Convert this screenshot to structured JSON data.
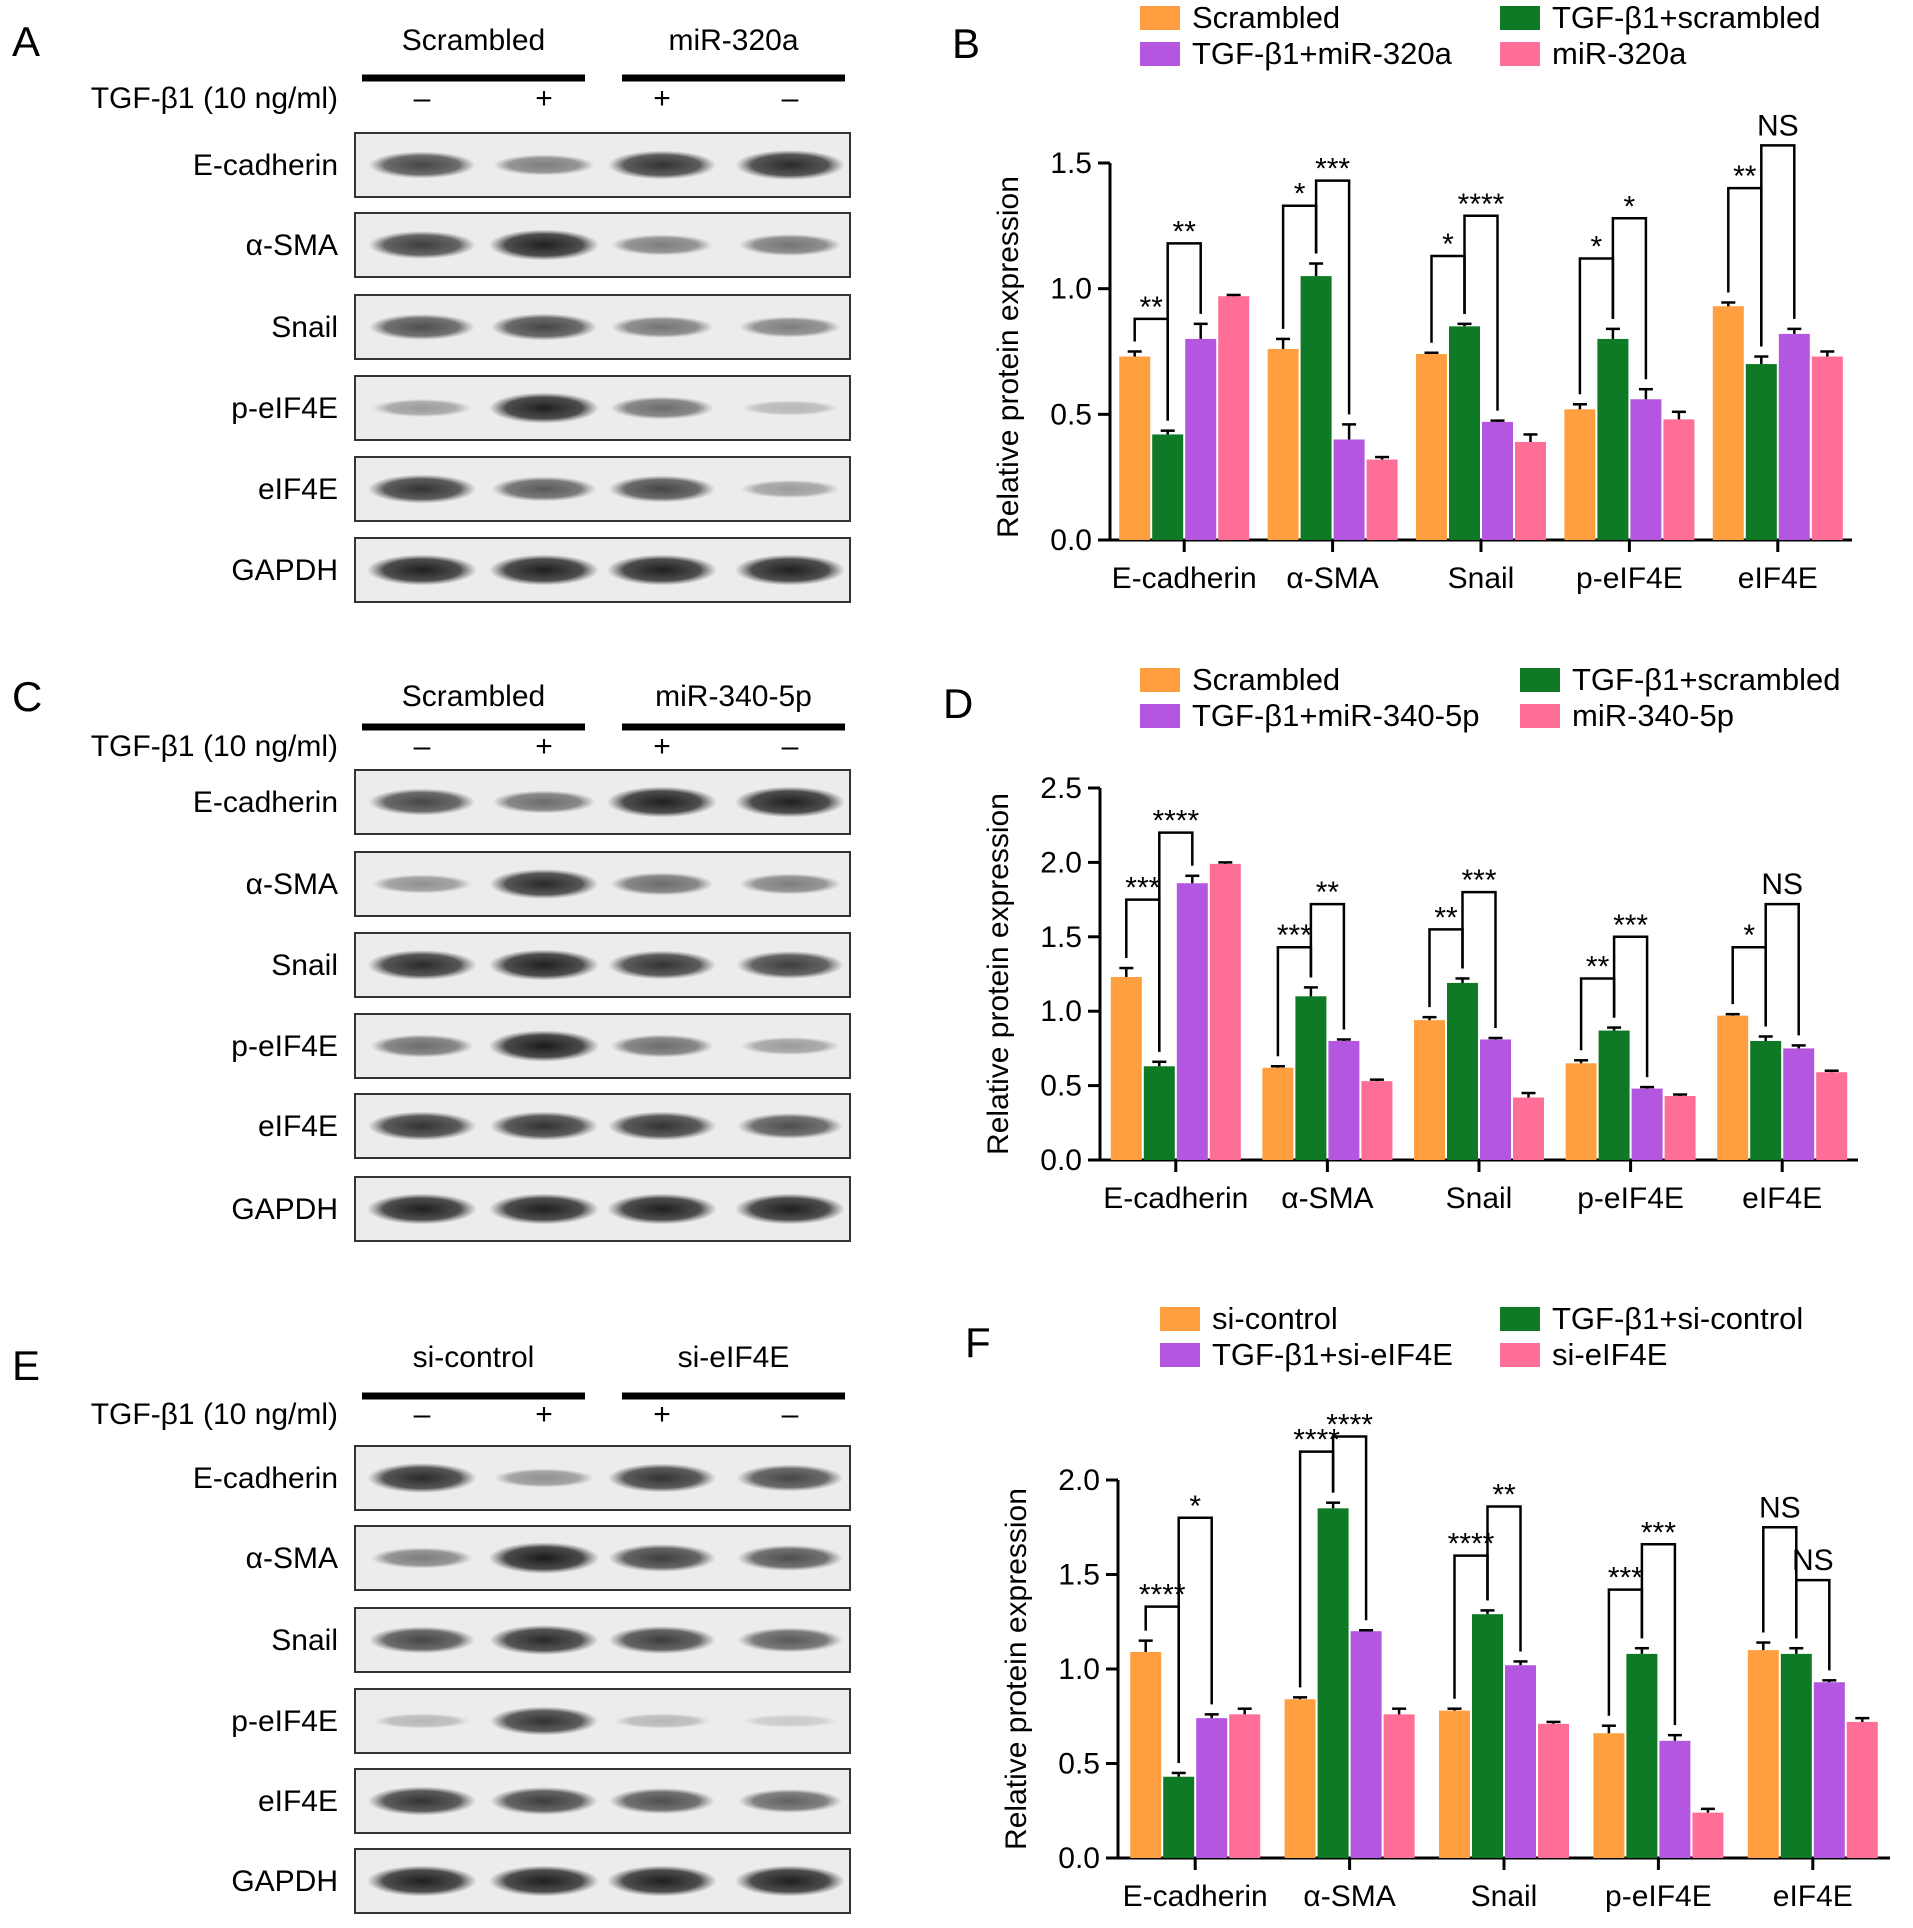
{
  "colors": {
    "orange": "#FF9F3F",
    "green": "#0E7A26",
    "purple": "#B457E0",
    "pink": "#FF6E96",
    "blot_band": "#161616",
    "blot_background": "#ececec"
  },
  "blot_panels": [
    {
      "letter": "A",
      "groups": [
        "Scrambled",
        "miR-320a"
      ],
      "treatment_label": "TGF-β1 (10 ng/ml)",
      "signs": [
        "–",
        "+",
        "+",
        "–"
      ],
      "rows": [
        "E-cadherin",
        "α-SMA",
        "Snail",
        "p-eIF4E",
        "eIF4E",
        "GAPDH"
      ],
      "band_intensity": [
        [
          0.75,
          0.45,
          0.85,
          0.9
        ],
        [
          0.8,
          0.95,
          0.45,
          0.5
        ],
        [
          0.7,
          0.75,
          0.5,
          0.45
        ],
        [
          0.3,
          0.95,
          0.55,
          0.15
        ],
        [
          0.85,
          0.65,
          0.75,
          0.3
        ],
        [
          0.95,
          0.95,
          0.95,
          0.95
        ]
      ]
    },
    {
      "letter": "C",
      "groups": [
        "Scrambled",
        "miR-340-5p"
      ],
      "treatment_label": "TGF-β1 (10 ng/ml)",
      "signs": [
        "–",
        "+",
        "+",
        "–"
      ],
      "rows": [
        "E-cadherin",
        "α-SMA",
        "Snail",
        "p-eIF4E",
        "eIF4E",
        "GAPDH"
      ],
      "band_intensity": [
        [
          0.75,
          0.55,
          0.95,
          0.95
        ],
        [
          0.35,
          0.9,
          0.55,
          0.45
        ],
        [
          0.9,
          0.95,
          0.85,
          0.8
        ],
        [
          0.55,
          0.98,
          0.55,
          0.3
        ],
        [
          0.85,
          0.85,
          0.85,
          0.7
        ],
        [
          0.95,
          0.95,
          0.95,
          0.95
        ]
      ]
    },
    {
      "letter": "E",
      "groups": [
        "si-control",
        "si-eIF4E"
      ],
      "treatment_label": "TGF-β1 (10 ng/ml)",
      "signs": [
        "–",
        "+",
        "+",
        "–"
      ],
      "rows": [
        "E-cadherin",
        "α-SMA",
        "Snail",
        "p-eIF4E",
        "eIF4E",
        "GAPDH"
      ],
      "band_intensity": [
        [
          0.9,
          0.35,
          0.85,
          0.75
        ],
        [
          0.45,
          0.98,
          0.8,
          0.7
        ],
        [
          0.75,
          0.9,
          0.8,
          0.65
        ],
        [
          0.15,
          0.85,
          0.15,
          0.05
        ],
        [
          0.85,
          0.8,
          0.7,
          0.6
        ],
        [
          0.95,
          0.95,
          0.95,
          0.95
        ]
      ]
    }
  ],
  "chart_data": [
    {
      "type": "bar",
      "letter": "B",
      "ylabel": "Relative protein expression",
      "ylim": [
        0,
        1.5
      ],
      "yticks": [
        "0.0",
        "0.5",
        "1.0",
        "1.5"
      ],
      "categories": [
        "E-cadherin",
        "α-SMA",
        "Snail",
        "p-eIF4E",
        "eIF4E"
      ],
      "legend": "top",
      "series": [
        {
          "name": "Scrambled",
          "color": "#FF9F3F",
          "values": [
            0.73,
            0.76,
            0.74,
            0.52,
            0.93
          ],
          "errors": [
            0.02,
            0.04,
            0.005,
            0.02,
            0.015
          ]
        },
        {
          "name": "TGF-β1+scrambled",
          "color": "#0E7A26",
          "values": [
            0.42,
            1.05,
            0.85,
            0.8,
            0.7
          ],
          "errors": [
            0.015,
            0.05,
            0.01,
            0.04,
            0.03
          ]
        },
        {
          "name": "TGF-β1+miR-320a",
          "color": "#B457E0",
          "values": [
            0.8,
            0.4,
            0.47,
            0.56,
            0.82
          ],
          "errors": [
            0.06,
            0.06,
            0.005,
            0.04,
            0.02
          ]
        },
        {
          "name": "miR-320a",
          "color": "#FF6E96",
          "values": [
            0.97,
            0.32,
            0.39,
            0.48,
            0.73
          ],
          "errors": [
            0.005,
            0.01,
            0.03,
            0.03,
            0.02
          ]
        }
      ],
      "significance": [
        {
          "category": 0,
          "from": 0,
          "to": 1,
          "label": "**",
          "level": 0.88
        },
        {
          "category": 0,
          "from": 1,
          "to": 2,
          "label": "**",
          "level": 1.18
        },
        {
          "category": 1,
          "from": 0,
          "to": 1,
          "label": "*",
          "level": 1.33
        },
        {
          "category": 1,
          "from": 1,
          "to": 2,
          "label": "***",
          "level": 1.43
        },
        {
          "category": 2,
          "from": 0,
          "to": 1,
          "label": "*",
          "level": 1.13
        },
        {
          "category": 2,
          "from": 1,
          "to": 2,
          "label": "****",
          "level": 1.29
        },
        {
          "category": 3,
          "from": 0,
          "to": 1,
          "label": "*",
          "level": 1.12
        },
        {
          "category": 3,
          "from": 1,
          "to": 2,
          "label": "*",
          "level": 1.28
        },
        {
          "category": 4,
          "from": 0,
          "to": 1,
          "label": "**",
          "level": 1.4
        },
        {
          "category": 4,
          "from": 1,
          "to": 2,
          "label": "NS",
          "level": 1.57
        }
      ]
    },
    {
      "type": "bar",
      "letter": "D",
      "ylabel": "Relative protein expression",
      "ylim": [
        0,
        2.5
      ],
      "yticks": [
        "0.0",
        "0.5",
        "1.0",
        "1.5",
        "2.0",
        "2.5"
      ],
      "categories": [
        "E-cadherin",
        "α-SMA",
        "Snail",
        "p-eIF4E",
        "eIF4E"
      ],
      "legend": "top",
      "series": [
        {
          "name": "Scrambled",
          "color": "#FF9F3F",
          "values": [
            1.23,
            0.62,
            0.94,
            0.65,
            0.97
          ],
          "errors": [
            0.06,
            0.01,
            0.02,
            0.02,
            0.01
          ]
        },
        {
          "name": "TGF-β1+scrambled",
          "color": "#0E7A26",
          "values": [
            0.63,
            1.1,
            1.19,
            0.87,
            0.8
          ],
          "errors": [
            0.03,
            0.06,
            0.03,
            0.02,
            0.03
          ]
        },
        {
          "name": "TGF-β1+miR-340-5p",
          "color": "#B457E0",
          "values": [
            1.86,
            0.8,
            0.81,
            0.48,
            0.75
          ],
          "errors": [
            0.05,
            0.01,
            0.01,
            0.01,
            0.02
          ]
        },
        {
          "name": "miR-340-5p",
          "color": "#FF6E96",
          "values": [
            1.99,
            0.53,
            0.42,
            0.43,
            0.59
          ],
          "errors": [
            0.01,
            0.01,
            0.03,
            0.01,
            0.01
          ]
        }
      ],
      "significance": [
        {
          "category": 0,
          "from": 0,
          "to": 1,
          "label": "***",
          "level": 1.75
        },
        {
          "category": 0,
          "from": 1,
          "to": 2,
          "label": "****",
          "level": 2.2
        },
        {
          "category": 1,
          "from": 0,
          "to": 1,
          "label": "***",
          "level": 1.43
        },
        {
          "category": 1,
          "from": 1,
          "to": 2,
          "label": "**",
          "level": 1.72
        },
        {
          "category": 2,
          "from": 0,
          "to": 1,
          "label": "**",
          "level": 1.55
        },
        {
          "category": 2,
          "from": 1,
          "to": 2,
          "label": "***",
          "level": 1.8
        },
        {
          "category": 3,
          "from": 0,
          "to": 1,
          "label": "**",
          "level": 1.22
        },
        {
          "category": 3,
          "from": 1,
          "to": 2,
          "label": "***",
          "level": 1.5
        },
        {
          "category": 4,
          "from": 0,
          "to": 1,
          "label": "*",
          "level": 1.43
        },
        {
          "category": 4,
          "from": 1,
          "to": 2,
          "label": "NS",
          "level": 1.72
        }
      ]
    },
    {
      "type": "bar",
      "letter": "F",
      "ylabel": "Relative protein expression",
      "ylim": [
        0,
        2.0
      ],
      "yticks": [
        "0.0",
        "0.5",
        "1.0",
        "1.5",
        "2.0"
      ],
      "categories": [
        "E-cadherin",
        "α-SMA",
        "Snail",
        "p-eIF4E",
        "eIF4E"
      ],
      "legend": "top",
      "series": [
        {
          "name": "si-control",
          "color": "#FF9F3F",
          "values": [
            1.09,
            0.84,
            0.78,
            0.66,
            1.1
          ],
          "errors": [
            0.06,
            0.01,
            0.01,
            0.04,
            0.04
          ]
        },
        {
          "name": "TGF-β1+si-control",
          "color": "#0E7A26",
          "values": [
            0.43,
            1.85,
            1.29,
            1.08,
            1.08
          ],
          "errors": [
            0.02,
            0.03,
            0.02,
            0.03,
            0.03
          ]
        },
        {
          "name": "TGF-β1+si-eIF4E",
          "color": "#B457E0",
          "values": [
            0.74,
            1.2,
            1.02,
            0.62,
            0.93
          ],
          "errors": [
            0.02,
            0.005,
            0.02,
            0.03,
            0.01
          ]
        },
        {
          "name": "si-eIF4E",
          "color": "#FF6E96",
          "values": [
            0.76,
            0.76,
            0.71,
            0.24,
            0.72
          ],
          "errors": [
            0.03,
            0.03,
            0.01,
            0.02,
            0.02
          ]
        }
      ],
      "significance": [
        {
          "category": 0,
          "from": 0,
          "to": 1,
          "label": "****",
          "level": 1.33
        },
        {
          "category": 0,
          "from": 1,
          "to": 2,
          "label": "*",
          "level": 1.8
        },
        {
          "category": 1,
          "from": 0,
          "to": 1,
          "label": "****",
          "level": 2.15
        },
        {
          "category": 1,
          "from": 1,
          "to": 2,
          "label": "****",
          "level": 2.23
        },
        {
          "category": 2,
          "from": 0,
          "to": 1,
          "label": "****",
          "level": 1.6
        },
        {
          "category": 2,
          "from": 1,
          "to": 2,
          "label": "**",
          "level": 1.86
        },
        {
          "category": 3,
          "from": 0,
          "to": 1,
          "label": "***",
          "level": 1.42
        },
        {
          "category": 3,
          "from": 1,
          "to": 2,
          "label": "***",
          "level": 1.66
        },
        {
          "category": 4,
          "from": 0,
          "to": 1,
          "label": "NS",
          "level": 1.75
        },
        {
          "category": 4,
          "from": 1,
          "to": 2,
          "label": "NS",
          "level": 1.47
        }
      ]
    }
  ]
}
